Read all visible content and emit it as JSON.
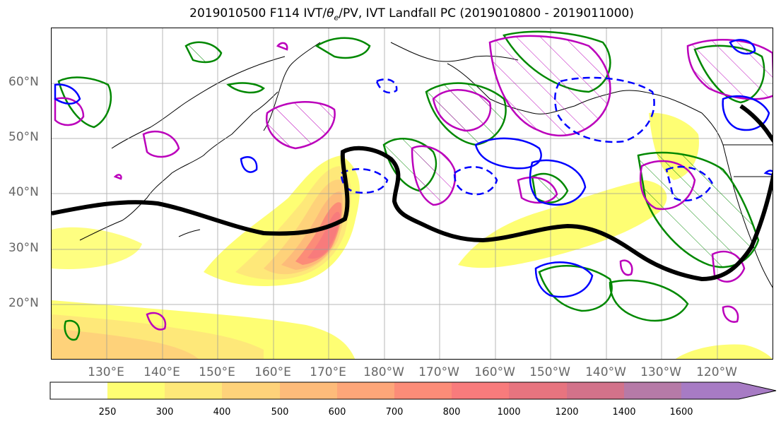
{
  "title_prefix": "2019010500 F114 IVT/",
  "title_theta": "θ",
  "title_theta_sub": "e",
  "title_suffix": "/PV, IVT Landfall PC (2019010800 - 2019011000)",
  "lat_labels": [
    "60°N",
    "50°N",
    "40°N",
    "30°N",
    "20°N"
  ],
  "lon_labels": [
    "130°E",
    "140°E",
    "150°E",
    "160°E",
    "170°E",
    "180°W",
    "170°W",
    "160°W",
    "150°W",
    "140°W",
    "130°W",
    "120°W"
  ],
  "colorbar": {
    "ticks": [
      "250",
      "300",
      "400",
      "500",
      "600",
      "700",
      "800",
      "1000",
      "1200",
      "1400",
      "1600"
    ],
    "colors": [
      "#ffffff",
      "#fefe73",
      "#fee879",
      "#fed27a",
      "#fdbb7a",
      "#fda679",
      "#fc8c78",
      "#f87b7c",
      "#e7747f",
      "#d2728a",
      "#b67aa7",
      "#a77bc4"
    ]
  },
  "legend_colors": {
    "pv_contour": "#0000ff",
    "theta_contour": "#bb00bb",
    "mslp_contour": "#008800",
    "jet_line": "#000000"
  }
}
